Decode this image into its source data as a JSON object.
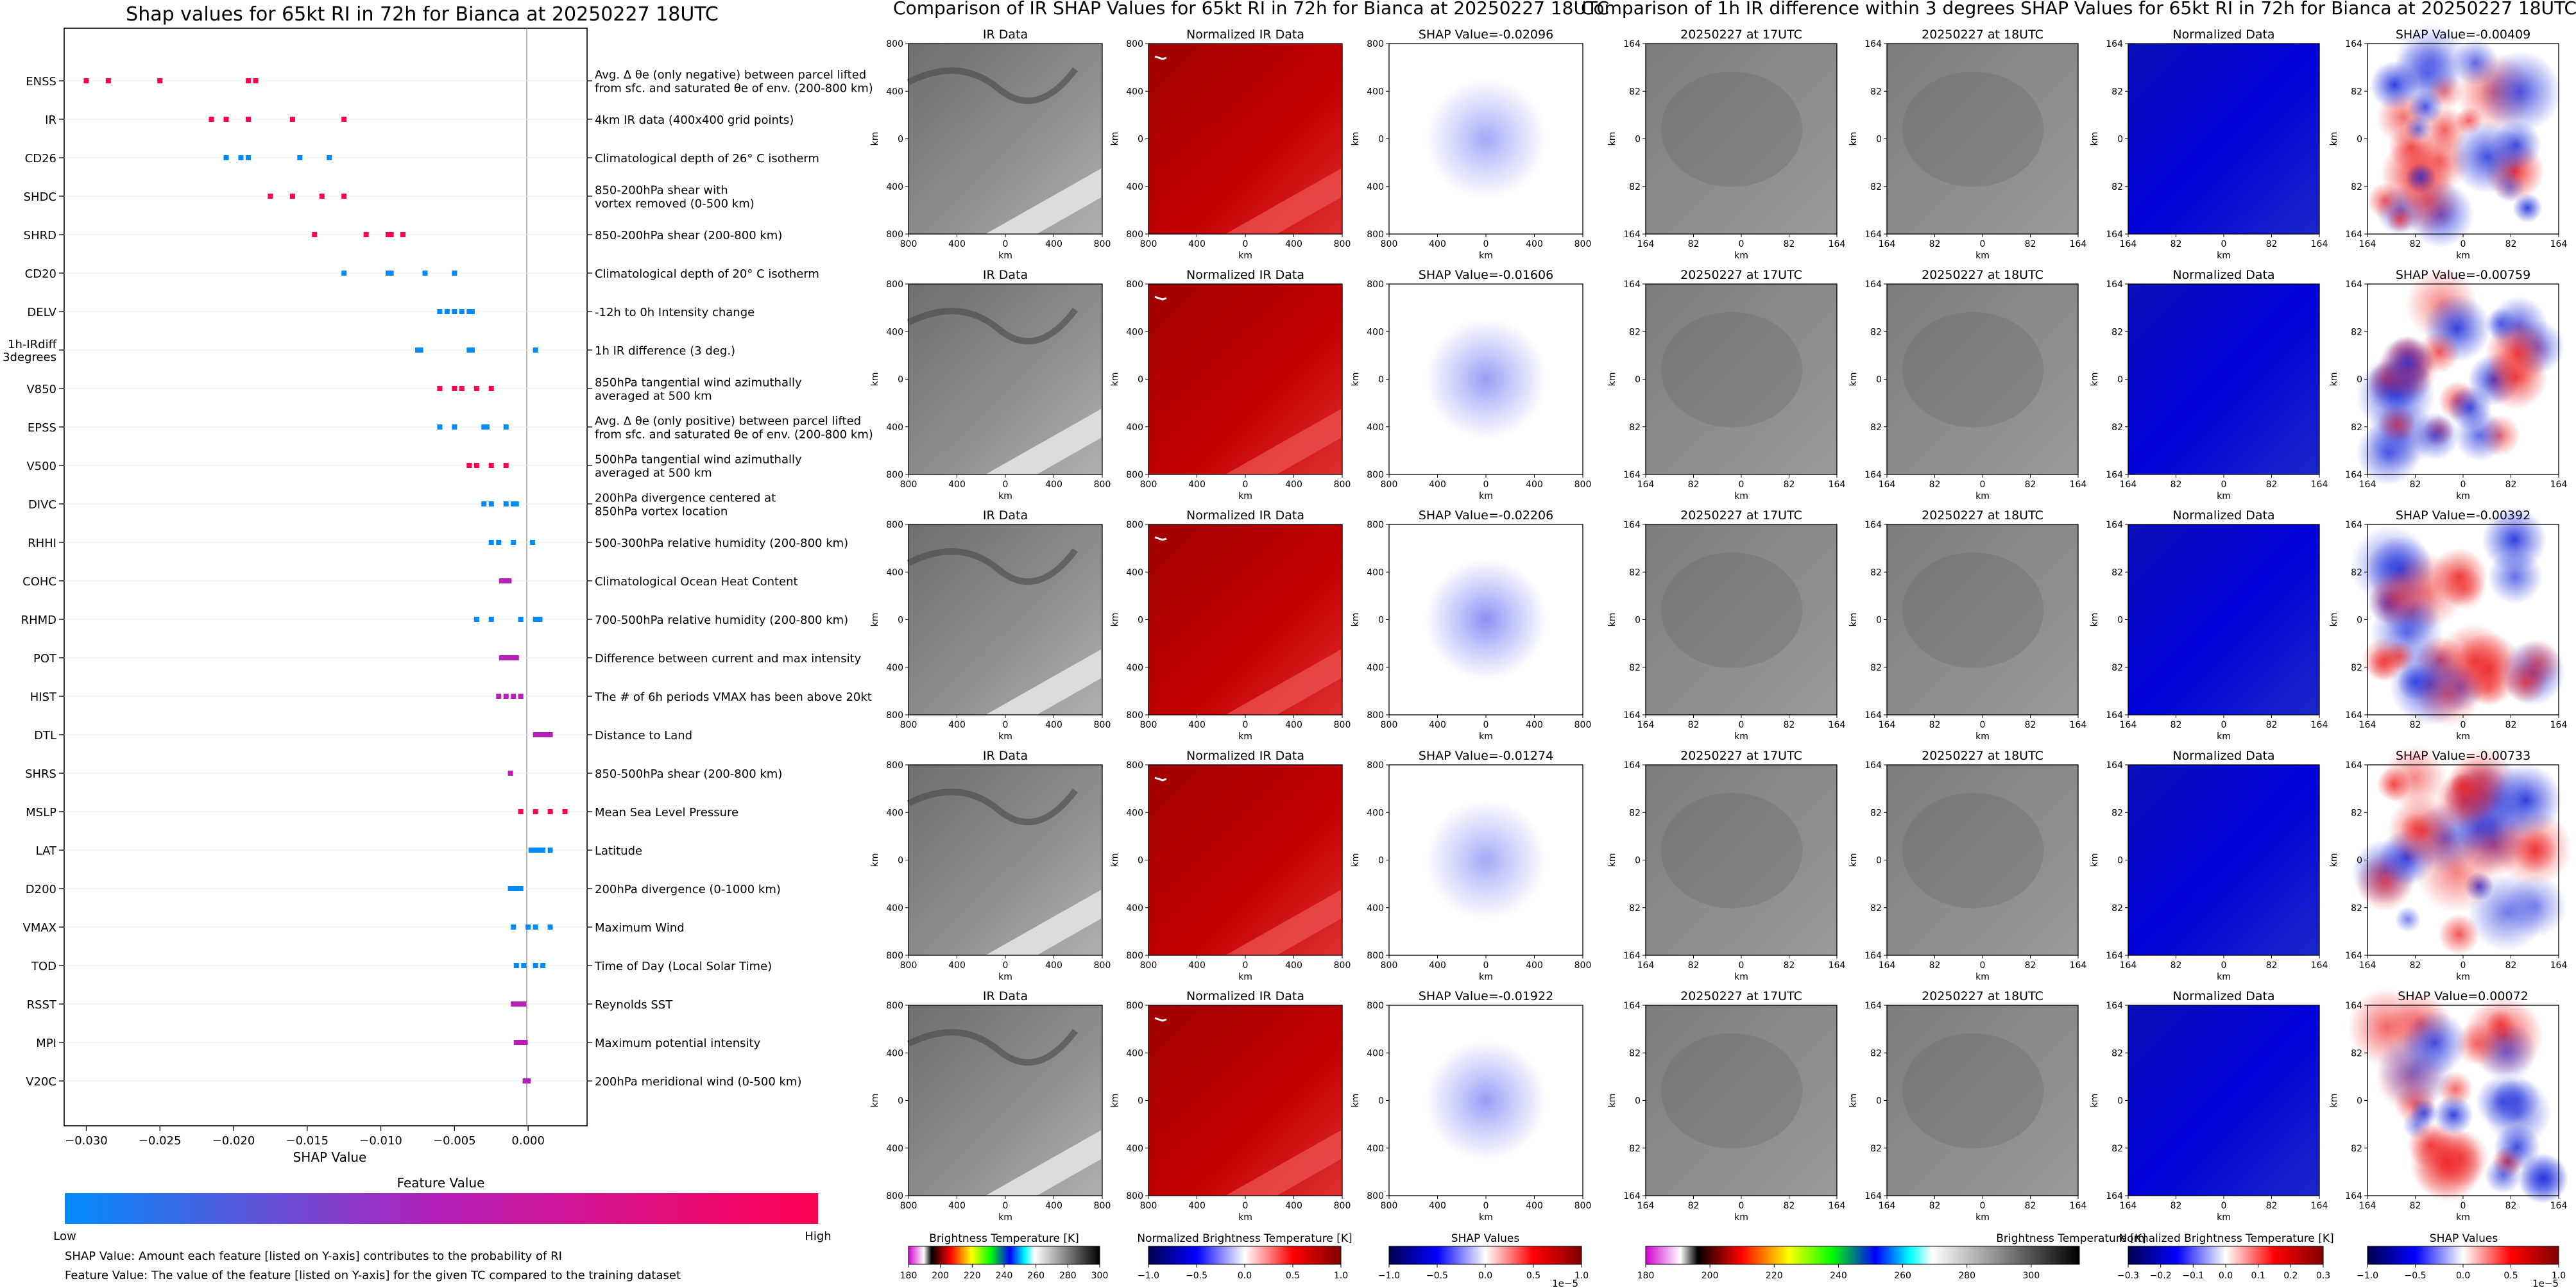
{
  "shap_panel": {
    "title": "Shap values for 65kt RI in 72h for Bianca at 20250227 18UTC",
    "xlabel": "SHAP Value",
    "colorbar_title": "Feature Value",
    "colorbar_low": "Low",
    "colorbar_high": "High",
    "note1": "SHAP Value: Amount each feature [listed on Y-axis] contributes to the probability of RI",
    "note2": "Feature Value: The value of the feature [listed on Y-axis] for the given TC compared to the training dataset"
  },
  "ir_section": {
    "title": "Comparison of IR SHAP Values for 65kt RI in 72h for Bianca at 20250227 18UTC",
    "col_titles": [
      "IR Data",
      "Normalized IR Data"
    ],
    "shap_titles": [
      "SHAP Value=-0.02096",
      "SHAP Value=-0.01606",
      "SHAP Value=-0.02206",
      "SHAP Value=-0.01274",
      "SHAP Value=-0.01922"
    ],
    "ticks": [
      "800",
      "400",
      "0",
      "400",
      "800"
    ],
    "axis_label": "km",
    "colorbars": [
      {
        "label": "Brightness Temperature [K]",
        "ticks": [
          "180",
          "200",
          "220",
          "240",
          "260",
          "280",
          "300"
        ]
      },
      {
        "label": "Normalized Brightness Temperature [K]",
        "ticks": [
          "−1.0",
          "−0.5",
          "0.0",
          "0.5",
          "1.0"
        ]
      },
      {
        "label": "SHAP Values",
        "ticks": [
          "−1.0",
          "−0.5",
          "0.0",
          "0.5",
          "1.0"
        ],
        "multiplier": "1e−5"
      }
    ]
  },
  "diff_section": {
    "title": "Comparison of 1h IR difference within 3 degrees SHAP Values for 65kt RI in 72h for Bianca at 20250227 18UTC",
    "col_titles": [
      "20250227 at 17UTC",
      "20250227 at 18UTC",
      "Normalized Data"
    ],
    "shap_titles": [
      "SHAP Value=-0.00409",
      "SHAP Value=-0.00759",
      "SHAP Value=-0.00392",
      "SHAP Value=-0.00733",
      "SHAP Value=0.00072"
    ],
    "ticks": [
      "164",
      "82",
      "0",
      "82",
      "164"
    ],
    "axis_label": "km",
    "colorbars": [
      {
        "label": "Brightness Temperature [K]",
        "ticks": [
          "180",
          "200",
          "220",
          "240",
          "260",
          "280",
          "300"
        ]
      },
      {
        "label": "Normalized Brightness Temperature [K]",
        "ticks": [
          "−0.3",
          "−0.2",
          "−0.1",
          "0.0",
          "0.1",
          "0.2",
          "0.3"
        ]
      },
      {
        "label": "SHAP Values",
        "ticks": [
          "−1.0",
          "−0.5",
          "0.0",
          "0.5",
          "1.0"
        ],
        "multiplier": "1e−5"
      }
    ]
  },
  "chart_data": {
    "type": "scatter",
    "title": "Shap values for 65kt RI in 72h for Bianca at 20250227 18UTC",
    "xlabel": "SHAP Value",
    "xlim": [
      -0.0315,
      0.004
    ],
    "xticks": [
      -0.03,
      -0.025,
      -0.02,
      -0.015,
      -0.01,
      -0.005,
      0.0
    ],
    "xtick_labels": [
      "−0.030",
      "−0.025",
      "−0.020",
      "−0.015",
      "−0.010",
      "−0.005",
      "0.000"
    ],
    "colors": {
      "low": "#008bfb",
      "mid": "#b61fb8",
      "high": "#ff0052"
    },
    "features": [
      {
        "name": "ENSS",
        "desc": "Avg. Δ θe (only negative) between parcel lifted\nfrom sfc. and saturated θe of env. (200-800 km)",
        "color": "high",
        "values": [
          -0.03,
          -0.0285,
          -0.025,
          -0.019,
          -0.0185
        ]
      },
      {
        "name": "IR",
        "desc": "4km IR data (400x400 grid points)",
        "color": "high",
        "values": [
          -0.0215,
          -0.0205,
          -0.019,
          -0.016,
          -0.0125
        ]
      },
      {
        "name": "CD26",
        "desc": "Climatological depth of 26° C isotherm",
        "color": "low",
        "values": [
          -0.0205,
          -0.0195,
          -0.019,
          -0.0155,
          -0.0135
        ]
      },
      {
        "name": "SHDC",
        "desc": "850-200hPa shear with\nvortex removed (0-500 km)",
        "color": "high",
        "values": [
          -0.0175,
          -0.016,
          -0.014,
          -0.0125
        ]
      },
      {
        "name": "SHRD",
        "desc": "850-200hPa shear (200-800 km)",
        "color": "high",
        "values": [
          -0.0145,
          -0.011,
          -0.0095,
          -0.0093,
          -0.0085
        ]
      },
      {
        "name": "CD20",
        "desc": "Climatological depth of 20° C isotherm",
        "color": "low",
        "values": [
          -0.0125,
          -0.0095,
          -0.0093,
          -0.007,
          -0.005
        ]
      },
      {
        "name": "DELV",
        "desc": "-12h to 0h Intensity change",
        "color": "low",
        "values": [
          -0.006,
          -0.0055,
          -0.005,
          -0.0045,
          -0.004,
          -0.0038
        ]
      },
      {
        "name": "1h-IRdiff\n3degrees",
        "desc": "1h IR difference (3 deg.)",
        "color": "low",
        "values": [
          -0.0075,
          -0.0073,
          -0.004,
          -0.0038,
          0.0005
        ]
      },
      {
        "name": "V850",
        "desc": "850hPa tangential wind azimuthally\naveraged at 500 km",
        "color": "high",
        "values": [
          -0.006,
          -0.005,
          -0.0045,
          -0.0035,
          -0.0025
        ]
      },
      {
        "name": "EPSS",
        "desc": "Avg. Δ θe (only positive) between parcel lifted\nfrom sfc. and saturated θe of env. (200-800 km)",
        "color": "low",
        "values": [
          -0.006,
          -0.005,
          -0.003,
          -0.0028,
          -0.0015
        ]
      },
      {
        "name": "V500",
        "desc": "500hPa tangential wind azimuthally\naveraged at 500 km",
        "color": "high",
        "values": [
          -0.004,
          -0.0035,
          -0.0025,
          -0.0015
        ]
      },
      {
        "name": "DIVC",
        "desc": "200hPa divergence centered at\n850hPa vortex location",
        "color": "low",
        "values": [
          -0.003,
          -0.0025,
          -0.0015,
          -0.001,
          -0.0008
        ]
      },
      {
        "name": "RHHI",
        "desc": "500-300hPa relative humidity (200-800 km)",
        "color": "low",
        "values": [
          -0.0025,
          -0.002,
          -0.001,
          0.0003
        ]
      },
      {
        "name": "COHC",
        "desc": "Climatological Ocean Heat Content",
        "color": "mid",
        "values": [
          -0.0018,
          -0.0015,
          -0.0013
        ]
      },
      {
        "name": "RHMD",
        "desc": "700-500hPa relative humidity (200-800 km)",
        "color": "low",
        "values": [
          -0.0035,
          -0.0025,
          -0.0005,
          0.0005,
          0.0008
        ]
      },
      {
        "name": "POT",
        "desc": "Difference between current and max intensity",
        "color": "mid",
        "values": [
          -0.0018,
          -0.0015,
          -0.0012,
          -0.001,
          -0.0008
        ]
      },
      {
        "name": "HIST",
        "desc": "The # of 6h periods VMAX has been above 20kt",
        "color": "mid",
        "values": [
          -0.002,
          -0.0015,
          -0.001,
          -0.0005
        ]
      },
      {
        "name": "DTL",
        "desc": "Distance to Land",
        "color": "mid",
        "values": [
          0.0005,
          0.0008,
          0.001,
          0.0012,
          0.0015
        ]
      },
      {
        "name": "SHRS",
        "desc": "850-500hPa shear (200-800 km)",
        "color": "mid",
        "values": [
          -0.0012
        ]
      },
      {
        "name": "MSLP",
        "desc": "Mean Sea Level Pressure",
        "color": "high",
        "values": [
          -0.0005,
          0.0005,
          0.0015,
          0.0025
        ]
      },
      {
        "name": "LAT",
        "desc": "Latitude",
        "color": "low",
        "values": [
          0.0002,
          0.0005,
          0.0008,
          0.001,
          0.0015
        ]
      },
      {
        "name": "D200",
        "desc": "200hPa divergence (0-1000 km)",
        "color": "low",
        "values": [
          -0.0012,
          -0.001,
          -0.0008,
          -0.0005
        ]
      },
      {
        "name": "VMAX",
        "desc": "Maximum Wind",
        "color": "low",
        "values": [
          -0.001,
          0.0,
          0.0005,
          0.0015
        ]
      },
      {
        "name": "TOD",
        "desc": "Time of Day (Local Solar Time)",
        "color": "low",
        "values": [
          -0.0008,
          -0.0003,
          0.0005,
          0.001
        ]
      },
      {
        "name": "RSST",
        "desc": "Reynolds SST",
        "color": "mid",
        "values": [
          -0.001,
          -0.0008,
          -0.0005,
          -0.0003
        ]
      },
      {
        "name": "MPI",
        "desc": "Maximum potential intensity",
        "color": "mid",
        "values": [
          -0.0008,
          -0.0005,
          -0.0002
        ]
      },
      {
        "name": "V20C",
        "desc": "200hPa meridional wind (0-500 km)",
        "color": "mid",
        "values": [
          -0.0002,
          0.0
        ]
      }
    ]
  }
}
